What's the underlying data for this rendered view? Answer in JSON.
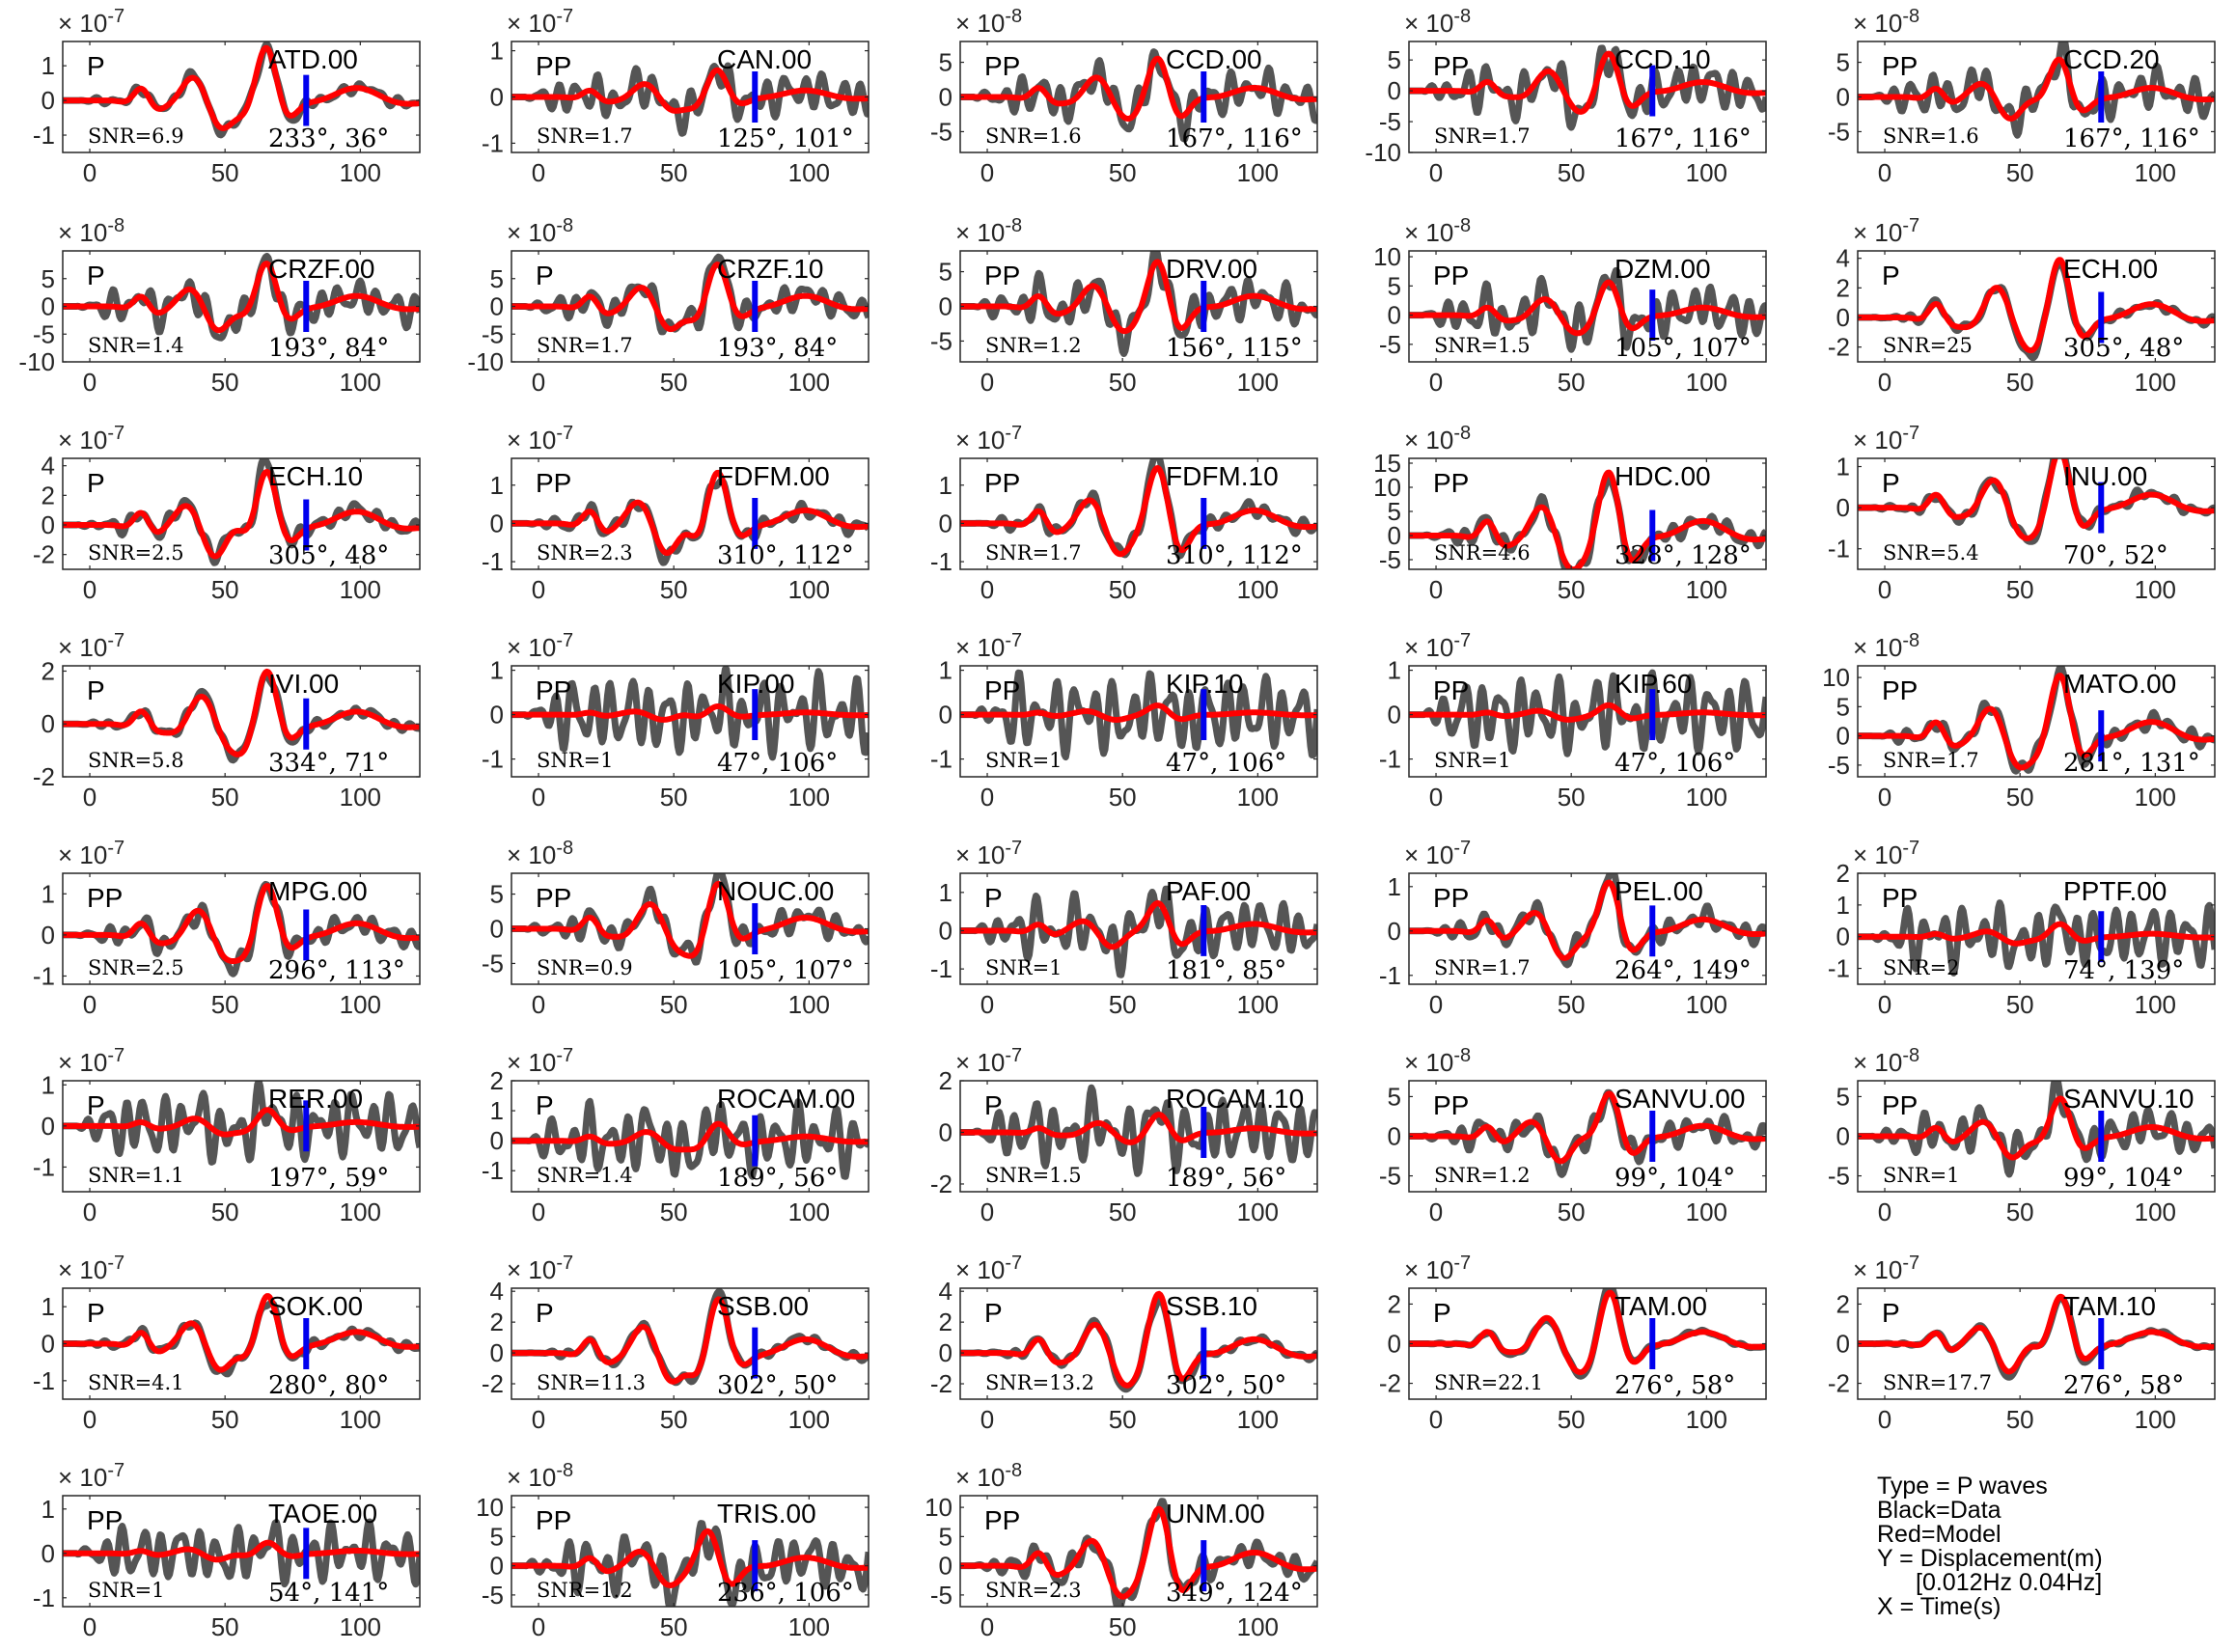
{
  "figure": {
    "colors": {
      "data": "#555555",
      "model": "#ff0000",
      "marker": "#0000ee",
      "axis": "#262626",
      "tick_label": "#262626"
    }
  },
  "chart_data": {
    "type": "line",
    "grid": false,
    "x_ticks": [
      0,
      50,
      100
    ],
    "x_range": [
      -10,
      122
    ],
    "panels": [
      {
        "station": "ATD.00",
        "phase": "P",
        "snr": "SNR=6.9",
        "angles": "233°, 36°",
        "exp": "-7",
        "yticks": [
          -1,
          0,
          1
        ],
        "ylim": [
          -1.5,
          1.7
        ],
        "noise": 0.15,
        "amp_scale": 0.9,
        "seed": 1
      },
      {
        "station": "CAN.00",
        "phase": "PP",
        "snr": "SNR=1.7",
        "angles": "125°, 101°",
        "exp": "-7",
        "yticks": [
          -1,
          0,
          1
        ],
        "ylim": [
          -1.2,
          1.2
        ],
        "noise": 0.6,
        "amp_scale": 0.5,
        "seed": 2
      },
      {
        "station": "CCD.00",
        "phase": "PP",
        "snr": "SNR=1.6",
        "angles": "167°, 116°",
        "exp": "-8",
        "yticks": [
          -5,
          0,
          5
        ],
        "ylim": [
          -8,
          8
        ],
        "noise": 0.6,
        "amp_scale": 0.7,
        "seed": 3
      },
      {
        "station": "CCD.10",
        "phase": "PP",
        "snr": "SNR=1.7",
        "angles": "167°, 116°",
        "exp": "-8",
        "yticks": [
          -10,
          -5,
          0,
          5
        ],
        "ylim": [
          -10,
          8
        ],
        "noise": 0.6,
        "amp_scale": 0.6,
        "seed": 4
      },
      {
        "station": "CCD.20",
        "phase": "PP",
        "snr": "SNR=1.6",
        "angles": "167°, 116°",
        "exp": "-8",
        "yticks": [
          -5,
          0,
          5
        ],
        "ylim": [
          -8,
          8
        ],
        "noise": 0.6,
        "amp_scale": 0.7,
        "seed": 5
      },
      {
        "station": "CRZF.00",
        "phase": "P",
        "snr": "SNR=1.4",
        "angles": "193°, 84°",
        "exp": "-8",
        "yticks": [
          -10,
          -5,
          0,
          5
        ],
        "ylim": [
          -10,
          10
        ],
        "noise": 0.5,
        "amp_scale": 0.8,
        "seed": 6
      },
      {
        "station": "CRZF.10",
        "phase": "P",
        "snr": "SNR=1.7",
        "angles": "193°, 84°",
        "exp": "-8",
        "yticks": [
          -10,
          -5,
          0,
          5
        ],
        "ylim": [
          -10,
          10
        ],
        "noise": 0.4,
        "amp_scale": 0.8,
        "seed": 7
      },
      {
        "station": "DRV.00",
        "phase": "PP",
        "snr": "SNR=1.2",
        "angles": "156°, 115°",
        "exp": "-8",
        "yticks": [
          -5,
          0,
          5
        ],
        "ylim": [
          -8,
          8
        ],
        "noise": 0.6,
        "amp_scale": 0.8,
        "seed": 8
      },
      {
        "station": "DZM.00",
        "phase": "PP",
        "snr": "SNR=1.5",
        "angles": "105°, 107°",
        "exp": "-8",
        "yticks": [
          -5,
          0,
          5,
          10
        ],
        "ylim": [
          -8,
          11
        ],
        "noise": 0.6,
        "amp_scale": 0.5,
        "seed": 9
      },
      {
        "station": "ECH.00",
        "phase": "P",
        "snr": "SNR=25",
        "angles": "305°, 48°",
        "exp": "-7",
        "yticks": [
          -2,
          0,
          2,
          4
        ],
        "ylim": [
          -3,
          4.5
        ],
        "noise": 0.1,
        "amp_scale": 0.85,
        "seed": 10
      },
      {
        "station": "ECH.10",
        "phase": "P",
        "snr": "SNR=2.5",
        "angles": "305°, 48°",
        "exp": "-7",
        "yticks": [
          -2,
          0,
          2,
          4
        ],
        "ylim": [
          -3,
          4.5
        ],
        "noise": 0.2,
        "amp_scale": 0.85,
        "seed": 11
      },
      {
        "station": "FDFM.00",
        "phase": "PP",
        "snr": "SNR=2.3",
        "angles": "310°, 112°",
        "exp": "-7",
        "yticks": [
          -1,
          0,
          1
        ],
        "ylim": [
          -1.2,
          1.7
        ],
        "noise": 0.2,
        "amp_scale": 0.85,
        "seed": 12
      },
      {
        "station": "FDFM.10",
        "phase": "PP",
        "snr": "SNR=1.7",
        "angles": "310°, 112°",
        "exp": "-7",
        "yticks": [
          -1,
          0,
          1
        ],
        "ylim": [
          -1.2,
          1.7
        ],
        "noise": 0.2,
        "amp_scale": 0.85,
        "seed": 13
      },
      {
        "station": "HDC.00",
        "phase": "PP",
        "snr": "SNR=4.6",
        "angles": "328°, 128°",
        "exp": "-8",
        "yticks": [
          -5,
          0,
          5,
          10,
          15
        ],
        "ylim": [
          -7,
          16
        ],
        "noise": 0.2,
        "amp_scale": 0.8,
        "seed": 14
      },
      {
        "station": "INU.00",
        "phase": "P",
        "snr": "SNR=5.4",
        "angles": "70°, 52°",
        "exp": "-7",
        "yticks": [
          -1,
          0,
          1
        ],
        "ylim": [
          -1.5,
          1.2
        ],
        "noise": 0.15,
        "amp_scale": 0.9,
        "seed": 15
      },
      {
        "station": "IVI.00",
        "phase": "P",
        "snr": "SNR=5.8",
        "angles": "334°, 71°",
        "exp": "-7",
        "yticks": [
          -2,
          0,
          2
        ],
        "ylim": [
          -2,
          2.2
        ],
        "noise": 0.15,
        "amp_scale": 0.9,
        "seed": 16
      },
      {
        "station": "KIP.00",
        "phase": "PP",
        "snr": "SNR=1",
        "angles": "47°, 106°",
        "exp": "-7",
        "yticks": [
          -1,
          0,
          1
        ],
        "ylim": [
          -1.4,
          1.1
        ],
        "noise": 1.0,
        "amp_scale": 0.15,
        "seed": 17
      },
      {
        "station": "KIP.10",
        "phase": "PP",
        "snr": "SNR=1",
        "angles": "47°, 106°",
        "exp": "-7",
        "yticks": [
          -1,
          0,
          1
        ],
        "ylim": [
          -1.4,
          1.1
        ],
        "noise": 1.0,
        "amp_scale": 0.15,
        "seed": 18
      },
      {
        "station": "KIP.60",
        "phase": "PP",
        "snr": "SNR=1",
        "angles": "47°, 106°",
        "exp": "-7",
        "yticks": [
          -1,
          0,
          1
        ],
        "ylim": [
          -1.4,
          1.1
        ],
        "noise": 1.0,
        "amp_scale": 0.15,
        "seed": 19
      },
      {
        "station": "MATO.00",
        "phase": "PP",
        "snr": "SNR=1.7",
        "angles": "281°, 131°",
        "exp": "-8",
        "yticks": [
          -5,
          0,
          5,
          10
        ],
        "ylim": [
          -7,
          12
        ],
        "noise": 0.2,
        "amp_scale": 0.85,
        "seed": 20
      },
      {
        "station": "MPG.00",
        "phase": "PP",
        "snr": "SNR=2.5",
        "angles": "296°, 113°",
        "exp": "-7",
        "yticks": [
          -1,
          0,
          1
        ],
        "ylim": [
          -1.2,
          1.5
        ],
        "noise": 0.3,
        "amp_scale": 0.8,
        "seed": 21
      },
      {
        "station": "NOUC.00",
        "phase": "PP",
        "snr": "SNR=0.9",
        "angles": "105°, 107°",
        "exp": "-8",
        "yticks": [
          -5,
          0,
          5
        ],
        "ylim": [
          -8,
          8
        ],
        "noise": 0.4,
        "amp_scale": 0.85,
        "seed": 22
      },
      {
        "station": "PAF.00",
        "phase": "P",
        "snr": "SNR=1",
        "angles": "181°, 85°",
        "exp": "-7",
        "yticks": [
          -1,
          0,
          1
        ],
        "ylim": [
          -1.4,
          1.5
        ],
        "noise": 0.8,
        "amp_scale": 0.5,
        "seed": 23
      },
      {
        "station": "PEL.00",
        "phase": "PP",
        "snr": "SNR=1.7",
        "angles": "264°, 149°",
        "exp": "-7",
        "yticks": [
          -1,
          0,
          1
        ],
        "ylim": [
          -1.2,
          1.3
        ],
        "noise": 0.3,
        "amp_scale": 0.85,
        "seed": 24
      },
      {
        "station": "PPTF.00",
        "phase": "PP",
        "snr": "SNR=2",
        "angles": "74°, 139°",
        "exp": "-7",
        "yticks": [
          -1,
          0,
          1,
          2
        ],
        "ylim": [
          -1.5,
          2
        ],
        "noise": 0.8,
        "amp_scale": 0.2,
        "seed": 25
      },
      {
        "station": "RER.00",
        "phase": "P",
        "snr": "SNR=1.1",
        "angles": "197°, 59°",
        "exp": "-7",
        "yticks": [
          -1,
          0,
          1
        ],
        "ylim": [
          -1.6,
          1.1
        ],
        "noise": 0.8,
        "amp_scale": 0.25,
        "seed": 26
      },
      {
        "station": "ROCAM.00",
        "phase": "P",
        "snr": "SNR=1.4",
        "angles": "189°, 56°",
        "exp": "-7",
        "yticks": [
          -1,
          0,
          1,
          2
        ],
        "ylim": [
          -1.7,
          2
        ],
        "noise": 0.9,
        "amp_scale": 0.3,
        "seed": 27
      },
      {
        "station": "ROCAM.10",
        "phase": "P",
        "snr": "SNR=1.5",
        "angles": "189°, 56°",
        "exp": "-7",
        "yticks": [
          -2,
          0,
          2
        ],
        "ylim": [
          -2.3,
          2
        ],
        "noise": 0.9,
        "amp_scale": 0.3,
        "seed": 28
      },
      {
        "station": "SANVU.00",
        "phase": "PP",
        "snr": "SNR=1.2",
        "angles": "99°, 104°",
        "exp": "-8",
        "yticks": [
          -5,
          0,
          5
        ],
        "ylim": [
          -7,
          7
        ],
        "noise": 0.4,
        "amp_scale": 0.8,
        "seed": 29
      },
      {
        "station": "SANVU.10",
        "phase": "PP",
        "snr": "SNR=1",
        "angles": "99°, 104°",
        "exp": "-8",
        "yticks": [
          -5,
          0,
          5
        ],
        "ylim": [
          -7,
          7
        ],
        "noise": 0.6,
        "amp_scale": 0.7,
        "seed": 30
      },
      {
        "station": "SOK.00",
        "phase": "P",
        "snr": "SNR=4.1",
        "angles": "280°, 80°",
        "exp": "-7",
        "yticks": [
          -1,
          0,
          1
        ],
        "ylim": [
          -1.5,
          1.5
        ],
        "noise": 0.15,
        "amp_scale": 0.9,
        "seed": 31
      },
      {
        "station": "SSB.00",
        "phase": "P",
        "snr": "SNR=11.3",
        "angles": "302°, 50°",
        "exp": "-7",
        "yticks": [
          -2,
          0,
          2,
          4
        ],
        "ylim": [
          -3,
          4.2
        ],
        "noise": 0.1,
        "amp_scale": 0.9,
        "seed": 32
      },
      {
        "station": "SSB.10",
        "phase": "P",
        "snr": "SNR=13.2",
        "angles": "302°, 50°",
        "exp": "-7",
        "yticks": [
          -2,
          0,
          2,
          4
        ],
        "ylim": [
          -3,
          4.2
        ],
        "noise": 0.1,
        "amp_scale": 0.9,
        "seed": 33
      },
      {
        "station": "TAM.00",
        "phase": "P",
        "snr": "SNR=22.1",
        "angles": "276°, 58°",
        "exp": "-7",
        "yticks": [
          -2,
          0,
          2
        ],
        "ylim": [
          -2.8,
          2.8
        ],
        "noise": 0.05,
        "amp_scale": 0.9,
        "seed": 34
      },
      {
        "station": "TAM.10",
        "phase": "P",
        "snr": "SNR=17.7",
        "angles": "276°, 58°",
        "exp": "-7",
        "yticks": [
          -2,
          0,
          2
        ],
        "ylim": [
          -2.8,
          2.8
        ],
        "noise": 0.05,
        "amp_scale": 0.9,
        "seed": 35
      },
      {
        "station": "TAOE.00",
        "phase": "PP",
        "snr": "SNR=1",
        "angles": "54°, 141°",
        "exp": "-7",
        "yticks": [
          -1,
          0,
          1
        ],
        "ylim": [
          -1.2,
          1.3
        ],
        "noise": 0.8,
        "amp_scale": 0.2,
        "seed": 36
      },
      {
        "station": "TRIS.00",
        "phase": "PP",
        "snr": "SNR=1.2",
        "angles": "236°, 106°",
        "exp": "-8",
        "yticks": [
          -5,
          0,
          5,
          10
        ],
        "ylim": [
          -7,
          12
        ],
        "noise": 0.6,
        "amp_scale": 0.5,
        "seed": 37
      },
      {
        "station": "UNM.00",
        "phase": "PP",
        "snr": "SNR=2.3",
        "angles": "349°, 124°",
        "exp": "-8",
        "yticks": [
          -5,
          0,
          5,
          10
        ],
        "ylim": [
          -7,
          12
        ],
        "noise": 0.3,
        "amp_scale": 0.8,
        "seed": 38
      }
    ],
    "marker_time": 80,
    "legend": {
      "type": "Type = P waves",
      "black": "Black=Data",
      "red": "Red=Model",
      "y": "Y = Displacement(m)",
      "band": "[0.012Hz 0.04Hz]",
      "x": "X = Time(s)"
    }
  }
}
